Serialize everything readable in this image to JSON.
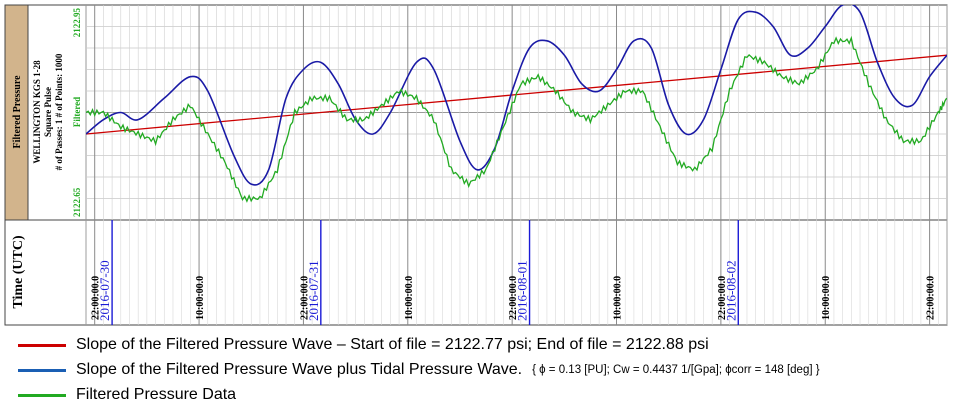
{
  "header_panel": {
    "title": "Filtered Pressure",
    "well": "WELLINGTON KGS 1-28",
    "pulse": "Square Pulse",
    "passes_points": "# of Passes: 1  # of Points: 1000",
    "series_label": "Filtered",
    "scale_max": "2122.95",
    "scale_min": "2122.65"
  },
  "time_panel": {
    "axis_title": "Time (UTC)"
  },
  "chart_data": {
    "type": "line",
    "ylim": [
      2122.65,
      2122.95
    ],
    "x_unit": "hours from 2016-07-30 22:00:00 UTC",
    "xlim": [
      -1,
      98
    ],
    "tick_labels": [
      {
        "x": 0,
        "label": "22:00:00.0",
        "date": "2016-07-30"
      },
      {
        "x": 12,
        "label": "10:00:00.0",
        "date": ""
      },
      {
        "x": 24,
        "label": "22:00:00.0",
        "date": "2016-07-31"
      },
      {
        "x": 36,
        "label": "10:00:00.0",
        "date": ""
      },
      {
        "x": 48,
        "label": "22:00:00.0",
        "date": "2016-08-01"
      },
      {
        "x": 60,
        "label": "10:00:00.0",
        "date": ""
      },
      {
        "x": 72,
        "label": "22:00:00.0",
        "date": "2016-08-02"
      },
      {
        "x": 84,
        "label": "10:00:00.0",
        "date": ""
      },
      {
        "x": 96,
        "label": "22:00:00.0",
        "date": ""
      }
    ],
    "date_markers": [
      {
        "x": 2,
        "date": "2016-07-30"
      },
      {
        "x": 26,
        "date": "2016-07-31"
      },
      {
        "x": 50,
        "date": "2016-08-01"
      },
      {
        "x": 74,
        "date": "2016-08-02"
      }
    ],
    "series": [
      {
        "name": "Slope of the Filtered Pressure Wave – Start of file = 2122.77 psi; End of file = 2122.88 psi",
        "color": "#cc0000",
        "points": [
          [
            -1,
            2122.77
          ],
          [
            98,
            2122.88
          ]
        ]
      },
      {
        "name": "Slope of the Filtered Pressure Wave plus Tidal Pressure Wave.",
        "color": "#1a1aa6",
        "points": [
          [
            -1,
            2122.77
          ],
          [
            1,
            2122.79
          ],
          [
            3,
            2122.8
          ],
          [
            5,
            2122.79
          ],
          [
            8,
            2122.82
          ],
          [
            11,
            2122.85
          ],
          [
            13,
            2122.83
          ],
          [
            16,
            2122.74
          ],
          [
            18,
            2122.7
          ],
          [
            20,
            2122.72
          ],
          [
            22,
            2122.82
          ],
          [
            24,
            2122.86
          ],
          [
            26,
            2122.87
          ],
          [
            28,
            2122.84
          ],
          [
            30,
            2122.79
          ],
          [
            32,
            2122.77
          ],
          [
            34,
            2122.8
          ],
          [
            37,
            2122.87
          ],
          [
            39,
            2122.86
          ],
          [
            42,
            2122.76
          ],
          [
            44,
            2122.72
          ],
          [
            46,
            2122.75
          ],
          [
            48,
            2122.83
          ],
          [
            50,
            2122.89
          ],
          [
            52,
            2122.9
          ],
          [
            54,
            2122.88
          ],
          [
            56,
            2122.84
          ],
          [
            58,
            2122.83
          ],
          [
            60,
            2122.86
          ],
          [
            62,
            2122.9
          ],
          [
            64,
            2122.89
          ],
          [
            66,
            2122.81
          ],
          [
            68,
            2122.77
          ],
          [
            70,
            2122.79
          ],
          [
            72,
            2122.86
          ],
          [
            74,
            2122.93
          ],
          [
            76,
            2122.94
          ],
          [
            78,
            2122.92
          ],
          [
            80,
            2122.88
          ],
          [
            82,
            2122.89
          ],
          [
            84,
            2122.92
          ],
          [
            86,
            2122.95
          ],
          [
            88,
            2122.94
          ],
          [
            90,
            2122.87
          ],
          [
            92,
            2122.82
          ],
          [
            94,
            2122.81
          ],
          [
            96,
            2122.85
          ],
          [
            98,
            2122.88
          ]
        ]
      },
      {
        "name": "Filtered Pressure Data",
        "color": "#22aa22",
        "points": [
          [
            -1,
            2122.8
          ],
          [
            1,
            2122.8
          ],
          [
            3,
            2122.78
          ],
          [
            5,
            2122.77
          ],
          [
            7,
            2122.76
          ],
          [
            9,
            2122.79
          ],
          [
            11,
            2122.81
          ],
          [
            13,
            2122.77
          ],
          [
            15,
            2122.73
          ],
          [
            17,
            2122.68
          ],
          [
            19,
            2122.68
          ],
          [
            21,
            2122.72
          ],
          [
            23,
            2122.8
          ],
          [
            25,
            2122.82
          ],
          [
            27,
            2122.82
          ],
          [
            29,
            2122.79
          ],
          [
            31,
            2122.79
          ],
          [
            33,
            2122.81
          ],
          [
            35,
            2122.83
          ],
          [
            37,
            2122.82
          ],
          [
            39,
            2122.79
          ],
          [
            41,
            2122.72
          ],
          [
            43,
            2122.7
          ],
          [
            45,
            2122.72
          ],
          [
            47,
            2122.78
          ],
          [
            49,
            2122.84
          ],
          [
            51,
            2122.85
          ],
          [
            53,
            2122.83
          ],
          [
            55,
            2122.8
          ],
          [
            57,
            2122.79
          ],
          [
            59,
            2122.81
          ],
          [
            61,
            2122.83
          ],
          [
            63,
            2122.83
          ],
          [
            65,
            2122.78
          ],
          [
            67,
            2122.73
          ],
          [
            69,
            2122.72
          ],
          [
            71,
            2122.75
          ],
          [
            73,
            2122.83
          ],
          [
            75,
            2122.88
          ],
          [
            77,
            2122.87
          ],
          [
            79,
            2122.85
          ],
          [
            81,
            2122.84
          ],
          [
            83,
            2122.86
          ],
          [
            85,
            2122.9
          ],
          [
            87,
            2122.9
          ],
          [
            89,
            2122.84
          ],
          [
            91,
            2122.79
          ],
          [
            93,
            2122.76
          ],
          [
            95,
            2122.76
          ],
          [
            97,
            2122.8
          ],
          [
            98,
            2122.82
          ]
        ]
      }
    ]
  },
  "legend": {
    "items": [
      {
        "text": "Slope of the Filtered Pressure Wave – Start of file = 2122.77 psi; End of file = 2122.88 psi",
        "color": "#cc0000",
        "note": ""
      },
      {
        "text": "Slope of the Filtered Pressure Wave plus Tidal Pressure Wave.",
        "color": "#1a5fb4",
        "note": "{ ϕ = 0.13 [PU]; Cw = 0.4437 1/[Gpa]; ϕcorr = 148 [deg] }"
      },
      {
        "text": "Filtered Pressure Data",
        "color": "#22aa22",
        "note": ""
      }
    ]
  }
}
